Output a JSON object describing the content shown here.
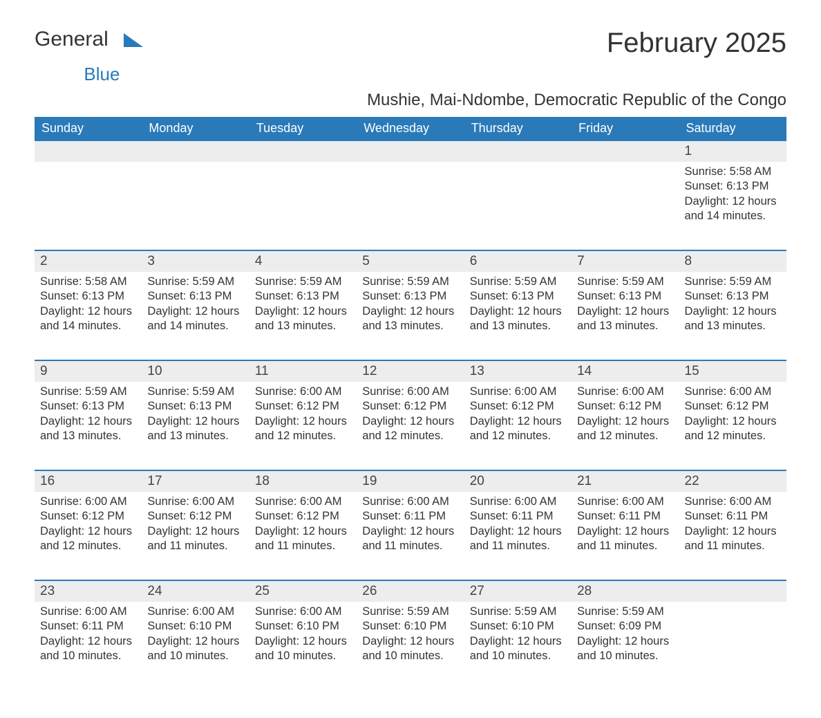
{
  "logo": {
    "text1": "General",
    "text2": "Blue"
  },
  "title": "February 2025",
  "subtitle": "Mushie, Mai-Ndombe, Democratic Republic of the Congo",
  "day_headers": [
    "Sunday",
    "Monday",
    "Tuesday",
    "Wednesday",
    "Thursday",
    "Friday",
    "Saturday"
  ],
  "colors": {
    "header_bg": "#2a7ab9",
    "header_text": "#ffffff",
    "daynum_bg": "#ededed",
    "row_border": "#2a7ab9",
    "text": "#333333",
    "logo_blue": "#2a7ab9"
  },
  "weeks": [
    {
      "nums": [
        "",
        "",
        "",
        "",
        "",
        "",
        "1"
      ],
      "details": [
        null,
        null,
        null,
        null,
        null,
        null,
        {
          "sunrise": "Sunrise: 5:58 AM",
          "sunset": "Sunset: 6:13 PM",
          "daylight1": "Daylight: 12 hours",
          "daylight2": "and 14 minutes."
        }
      ]
    },
    {
      "nums": [
        "2",
        "3",
        "4",
        "5",
        "6",
        "7",
        "8"
      ],
      "details": [
        {
          "sunrise": "Sunrise: 5:58 AM",
          "sunset": "Sunset: 6:13 PM",
          "daylight1": "Daylight: 12 hours",
          "daylight2": "and 14 minutes."
        },
        {
          "sunrise": "Sunrise: 5:59 AM",
          "sunset": "Sunset: 6:13 PM",
          "daylight1": "Daylight: 12 hours",
          "daylight2": "and 14 minutes."
        },
        {
          "sunrise": "Sunrise: 5:59 AM",
          "sunset": "Sunset: 6:13 PM",
          "daylight1": "Daylight: 12 hours",
          "daylight2": "and 13 minutes."
        },
        {
          "sunrise": "Sunrise: 5:59 AM",
          "sunset": "Sunset: 6:13 PM",
          "daylight1": "Daylight: 12 hours",
          "daylight2": "and 13 minutes."
        },
        {
          "sunrise": "Sunrise: 5:59 AM",
          "sunset": "Sunset: 6:13 PM",
          "daylight1": "Daylight: 12 hours",
          "daylight2": "and 13 minutes."
        },
        {
          "sunrise": "Sunrise: 5:59 AM",
          "sunset": "Sunset: 6:13 PM",
          "daylight1": "Daylight: 12 hours",
          "daylight2": "and 13 minutes."
        },
        {
          "sunrise": "Sunrise: 5:59 AM",
          "sunset": "Sunset: 6:13 PM",
          "daylight1": "Daylight: 12 hours",
          "daylight2": "and 13 minutes."
        }
      ]
    },
    {
      "nums": [
        "9",
        "10",
        "11",
        "12",
        "13",
        "14",
        "15"
      ],
      "details": [
        {
          "sunrise": "Sunrise: 5:59 AM",
          "sunset": "Sunset: 6:13 PM",
          "daylight1": "Daylight: 12 hours",
          "daylight2": "and 13 minutes."
        },
        {
          "sunrise": "Sunrise: 5:59 AM",
          "sunset": "Sunset: 6:13 PM",
          "daylight1": "Daylight: 12 hours",
          "daylight2": "and 13 minutes."
        },
        {
          "sunrise": "Sunrise: 6:00 AM",
          "sunset": "Sunset: 6:12 PM",
          "daylight1": "Daylight: 12 hours",
          "daylight2": "and 12 minutes."
        },
        {
          "sunrise": "Sunrise: 6:00 AM",
          "sunset": "Sunset: 6:12 PM",
          "daylight1": "Daylight: 12 hours",
          "daylight2": "and 12 minutes."
        },
        {
          "sunrise": "Sunrise: 6:00 AM",
          "sunset": "Sunset: 6:12 PM",
          "daylight1": "Daylight: 12 hours",
          "daylight2": "and 12 minutes."
        },
        {
          "sunrise": "Sunrise: 6:00 AM",
          "sunset": "Sunset: 6:12 PM",
          "daylight1": "Daylight: 12 hours",
          "daylight2": "and 12 minutes."
        },
        {
          "sunrise": "Sunrise: 6:00 AM",
          "sunset": "Sunset: 6:12 PM",
          "daylight1": "Daylight: 12 hours",
          "daylight2": "and 12 minutes."
        }
      ]
    },
    {
      "nums": [
        "16",
        "17",
        "18",
        "19",
        "20",
        "21",
        "22"
      ],
      "details": [
        {
          "sunrise": "Sunrise: 6:00 AM",
          "sunset": "Sunset: 6:12 PM",
          "daylight1": "Daylight: 12 hours",
          "daylight2": "and 12 minutes."
        },
        {
          "sunrise": "Sunrise: 6:00 AM",
          "sunset": "Sunset: 6:12 PM",
          "daylight1": "Daylight: 12 hours",
          "daylight2": "and 11 minutes."
        },
        {
          "sunrise": "Sunrise: 6:00 AM",
          "sunset": "Sunset: 6:12 PM",
          "daylight1": "Daylight: 12 hours",
          "daylight2": "and 11 minutes."
        },
        {
          "sunrise": "Sunrise: 6:00 AM",
          "sunset": "Sunset: 6:11 PM",
          "daylight1": "Daylight: 12 hours",
          "daylight2": "and 11 minutes."
        },
        {
          "sunrise": "Sunrise: 6:00 AM",
          "sunset": "Sunset: 6:11 PM",
          "daylight1": "Daylight: 12 hours",
          "daylight2": "and 11 minutes."
        },
        {
          "sunrise": "Sunrise: 6:00 AM",
          "sunset": "Sunset: 6:11 PM",
          "daylight1": "Daylight: 12 hours",
          "daylight2": "and 11 minutes."
        },
        {
          "sunrise": "Sunrise: 6:00 AM",
          "sunset": "Sunset: 6:11 PM",
          "daylight1": "Daylight: 12 hours",
          "daylight2": "and 11 minutes."
        }
      ]
    },
    {
      "nums": [
        "23",
        "24",
        "25",
        "26",
        "27",
        "28",
        ""
      ],
      "details": [
        {
          "sunrise": "Sunrise: 6:00 AM",
          "sunset": "Sunset: 6:11 PM",
          "daylight1": "Daylight: 12 hours",
          "daylight2": "and 10 minutes."
        },
        {
          "sunrise": "Sunrise: 6:00 AM",
          "sunset": "Sunset: 6:10 PM",
          "daylight1": "Daylight: 12 hours",
          "daylight2": "and 10 minutes."
        },
        {
          "sunrise": "Sunrise: 6:00 AM",
          "sunset": "Sunset: 6:10 PM",
          "daylight1": "Daylight: 12 hours",
          "daylight2": "and 10 minutes."
        },
        {
          "sunrise": "Sunrise: 5:59 AM",
          "sunset": "Sunset: 6:10 PM",
          "daylight1": "Daylight: 12 hours",
          "daylight2": "and 10 minutes."
        },
        {
          "sunrise": "Sunrise: 5:59 AM",
          "sunset": "Sunset: 6:10 PM",
          "daylight1": "Daylight: 12 hours",
          "daylight2": "and 10 minutes."
        },
        {
          "sunrise": "Sunrise: 5:59 AM",
          "sunset": "Sunset: 6:09 PM",
          "daylight1": "Daylight: 12 hours",
          "daylight2": "and 10 minutes."
        },
        null
      ]
    }
  ]
}
